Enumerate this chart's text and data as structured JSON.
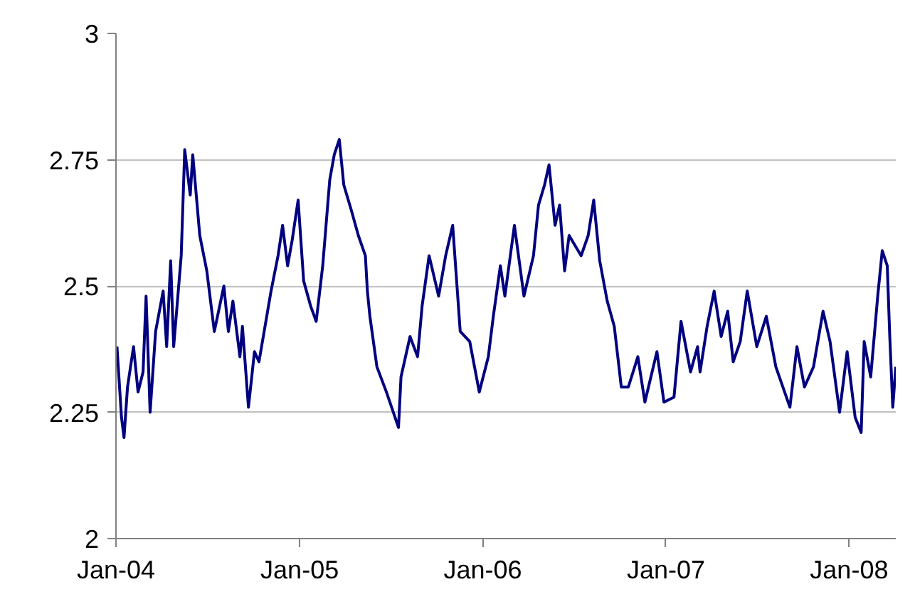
{
  "chart_data": {
    "type": "line",
    "x": [
      "2004-01-03",
      "2004-01-12",
      "2004-01-17",
      "2004-01-24",
      "2004-02-05",
      "2004-02-14",
      "2004-02-24",
      "2004-03-01",
      "2004-03-09",
      "2004-03-20",
      "2004-04-04",
      "2004-04-11",
      "2004-04-19",
      "2004-04-25",
      "2004-05-10",
      "2004-05-17",
      "2004-05-28",
      "2004-06-02",
      "2004-06-16",
      "2004-06-30",
      "2004-07-15",
      "2004-08-03",
      "2004-08-12",
      "2004-08-21",
      "2004-09-04",
      "2004-09-09",
      "2004-09-21",
      "2004-10-03",
      "2004-10-12",
      "2004-11-05",
      "2004-11-19",
      "2004-11-28",
      "2004-12-08",
      "2004-12-17",
      "2004-12-29",
      "2005-01-09",
      "2005-01-23",
      "2005-02-03",
      "2005-02-16",
      "2005-03-02",
      "2005-03-11",
      "2005-03-21",
      "2005-03-30",
      "2005-04-14",
      "2005-04-28",
      "2005-05-12",
      "2005-05-16",
      "2005-05-21",
      "2005-06-04",
      "2005-06-23",
      "2005-07-17",
      "2005-07-22",
      "2005-08-09",
      "2005-08-24",
      "2005-09-02",
      "2005-09-16",
      "2005-10-05",
      "2005-10-19",
      "2005-11-02",
      "2005-11-17",
      "2005-12-06",
      "2005-12-25",
      "2006-01-12",
      "2006-01-22",
      "2006-02-05",
      "2006-02-14",
      "2006-03-05",
      "2006-03-24",
      "2006-04-12",
      "2006-04-22",
      "2006-05-04",
      "2006-05-13",
      "2006-05-25",
      "2006-06-03",
      "2006-06-13",
      "2006-06-22",
      "2006-07-16",
      "2006-07-30",
      "2006-08-10",
      "2006-08-22",
      "2006-09-06",
      "2006-09-20",
      "2006-10-04",
      "2006-10-18",
      "2006-11-06",
      "2006-11-20",
      "2006-12-14",
      "2006-12-28",
      "2007-01-17",
      "2007-01-31",
      "2007-02-19",
      "2007-03-05",
      "2007-03-10",
      "2007-03-24",
      "2007-04-07",
      "2007-04-21",
      "2007-05-04",
      "2007-05-15",
      "2007-05-29",
      "2007-06-12",
      "2007-07-01",
      "2007-07-20",
      "2007-08-08",
      "2007-09-05",
      "2007-09-19",
      "2007-10-04",
      "2007-10-22",
      "2007-11-10",
      "2007-11-24",
      "2007-12-13",
      "2007-12-28",
      "2008-01-13",
      "2008-01-25",
      "2008-01-31",
      "2008-02-13",
      "2008-02-27",
      "2008-03-07",
      "2008-03-17",
      "2008-03-22",
      "2008-03-28",
      "2008-04-03"
    ],
    "series": [
      {
        "color": "#000080",
        "values": [
          2.38,
          2.24,
          2.2,
          2.3,
          2.38,
          2.29,
          2.33,
          2.48,
          2.25,
          2.41,
          2.49,
          2.38,
          2.55,
          2.38,
          2.56,
          2.77,
          2.68,
          2.76,
          2.6,
          2.53,
          2.41,
          2.5,
          2.41,
          2.47,
          2.36,
          2.42,
          2.26,
          2.37,
          2.35,
          2.49,
          2.56,
          2.62,
          2.54,
          2.59,
          2.67,
          2.51,
          2.46,
          2.43,
          2.54,
          2.71,
          2.76,
          2.79,
          2.7,
          2.65,
          2.6,
          2.56,
          2.49,
          2.44,
          2.34,
          2.29,
          2.22,
          2.32,
          2.4,
          2.36,
          2.46,
          2.56,
          2.48,
          2.56,
          2.62,
          2.41,
          2.39,
          2.29,
          2.36,
          2.44,
          2.54,
          2.48,
          2.62,
          2.48,
          2.56,
          2.66,
          2.7,
          2.74,
          2.62,
          2.66,
          2.53,
          2.6,
          2.56,
          2.6,
          2.67,
          2.55,
          2.47,
          2.42,
          2.3,
          2.3,
          2.36,
          2.27,
          2.37,
          2.27,
          2.28,
          2.43,
          2.33,
          2.38,
          2.33,
          2.42,
          2.49,
          2.4,
          2.45,
          2.35,
          2.39,
          2.49,
          2.38,
          2.44,
          2.34,
          2.26,
          2.38,
          2.3,
          2.34,
          2.45,
          2.39,
          2.25,
          2.37,
          2.24,
          2.21,
          2.39,
          2.32,
          2.48,
          2.57,
          2.54,
          2.4,
          2.26,
          2.34
        ]
      }
    ],
    "xlim": [
      "2004-01-01",
      "2008-04-03"
    ],
    "xticks": [
      {
        "value": "2004-01-01",
        "label": "Jan-04"
      },
      {
        "value": "2005-01-01",
        "label": "Jan-05"
      },
      {
        "value": "2006-01-01",
        "label": "Jan-06"
      },
      {
        "value": "2007-01-01",
        "label": "Jan-07"
      },
      {
        "value": "2008-01-01",
        "label": "Jan-08"
      }
    ],
    "ylim": [
      2,
      3
    ],
    "yticks": [
      2,
      2.25,
      2.5,
      2.75,
      3
    ],
    "grid": "y",
    "marker": "none",
    "line_style": "solid"
  }
}
